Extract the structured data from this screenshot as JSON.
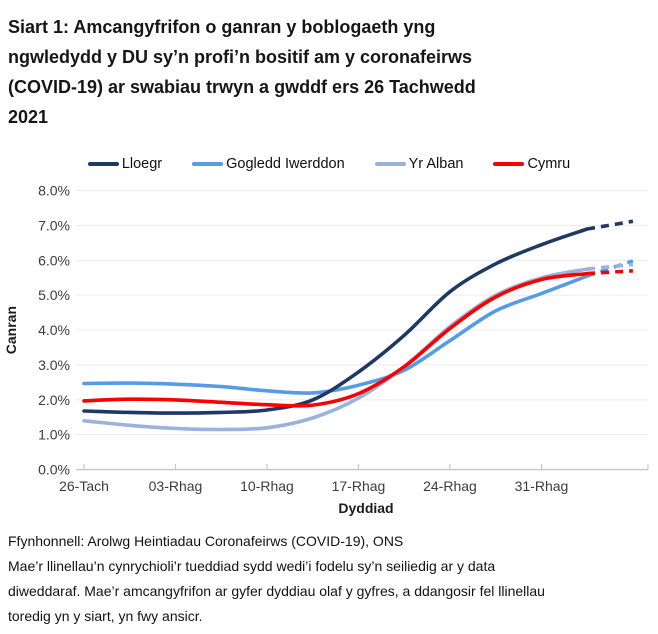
{
  "title_lines": [
    "Siart 1: Amcangyfrifon o ganran y boblogaeth yng",
    "ngwledydd y DU sy’n profi’n bositif am y coronafeirws",
    "(COVID-19) ar swabiau trwyn a gwddf ers 26 Tachwedd",
    "2021"
  ],
  "chart_data": {
    "type": "line",
    "title": "Siart 1: Amcangyfrifon o ganran y boblogaeth yng ngwledydd y DU sy’n profi’n bositif am y coronafeirws (COVID-19) ar swabiau trwyn a gwddf ers 26 Tachwedd 2021",
    "xlabel": "Dyddiad",
    "ylabel": "Canran",
    "x_tick_labels": [
      "26-Tach",
      "03-Rhag",
      "10-Rhag",
      "17-Rhag",
      "24-Rhag",
      "31-Rhag"
    ],
    "x_tick_days": [
      0,
      7,
      14,
      21,
      28,
      35
    ],
    "y_tick_labels": [
      "0.0%",
      "1.0%",
      "2.0%",
      "3.0%",
      "4.0%",
      "5.0%",
      "6.0%",
      "7.0%",
      "8.0%"
    ],
    "ylim": [
      0,
      8
    ],
    "x_range_days": [
      0,
      42
    ],
    "grid": true,
    "legend_position": "top",
    "dashed_from_day": 38.5,
    "dashed_tail_note": "llinellau toredig = mwy ansicr",
    "x_days": [
      0,
      3.5,
      7,
      10.5,
      14,
      17.5,
      21,
      24.5,
      28,
      31.5,
      35,
      38.5,
      42
    ],
    "series": [
      {
        "name": "Lloegr",
        "color": "#1f3864",
        "values": [
          1.68,
          1.64,
          1.62,
          1.64,
          1.71,
          2.0,
          2.8,
          3.85,
          5.1,
          5.9,
          6.45,
          6.9,
          7.12
        ]
      },
      {
        "name": "Gogledd Iwerddon",
        "color": "#569ce4",
        "values": [
          2.47,
          2.48,
          2.45,
          2.38,
          2.26,
          2.2,
          2.42,
          2.85,
          3.7,
          4.55,
          5.05,
          5.55,
          5.98
        ]
      },
      {
        "name": "Yr Alban",
        "color": "#9bb2dc",
        "values": [
          1.4,
          1.27,
          1.18,
          1.15,
          1.2,
          1.48,
          2.05,
          2.95,
          4.1,
          5.0,
          5.5,
          5.75,
          5.88
        ]
      },
      {
        "name": "Cymru",
        "color": "#fa0000",
        "values": [
          1.97,
          2.02,
          2.0,
          1.93,
          1.86,
          1.85,
          2.18,
          2.95,
          4.05,
          4.95,
          5.45,
          5.62,
          5.7
        ]
      }
    ]
  },
  "footer": {
    "source": "Ffynhonnell: Arolwg Heintiadau Coronafeirws (COVID-19), ONS",
    "note_lines": [
      "Mae’r llinellau’n cynrychioli’r tueddiad sydd wedi’i fodelu sy’n seiliedig ar y data",
      "diweddaraf. Mae’r amcangyfrifon ar gyfer dyddiau olaf y gyfres, a ddangosir fel llinellau",
      "toredig yn y siart, yn fwy ansicr."
    ]
  }
}
